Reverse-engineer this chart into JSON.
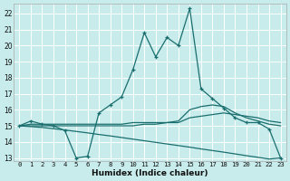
{
  "background_color": "#c8ecec",
  "grid_color": "#ffffff",
  "line_color": "#1a6e6e",
  "x_label": "Humidex (Indice chaleur)",
  "xlim": [
    -0.5,
    23.5
  ],
  "ylim": [
    12.8,
    22.6
  ],
  "yticks": [
    13,
    14,
    15,
    16,
    17,
    18,
    19,
    20,
    21,
    22
  ],
  "xticks": [
    0,
    1,
    2,
    3,
    4,
    5,
    6,
    7,
    8,
    9,
    10,
    11,
    12,
    13,
    14,
    15,
    16,
    17,
    18,
    19,
    20,
    21,
    22,
    23
  ],
  "line1_x": [
    0,
    1,
    2,
    3,
    4,
    5,
    6,
    7,
    8,
    9,
    10,
    11,
    12,
    13,
    14,
    15,
    16,
    17,
    18,
    19,
    20,
    21,
    22,
    23
  ],
  "line1_y": [
    15.0,
    15.3,
    15.1,
    15.0,
    14.7,
    13.0,
    13.1,
    15.8,
    16.3,
    16.8,
    18.5,
    20.8,
    19.3,
    20.5,
    20.0,
    22.3,
    17.3,
    16.7,
    16.1,
    15.5,
    15.2,
    15.2,
    14.8,
    13.0
  ],
  "line2_x": [
    0,
    1,
    2,
    3,
    4,
    5,
    6,
    7,
    8,
    9,
    10,
    11,
    12,
    13,
    14,
    15,
    16,
    17,
    18,
    19,
    20,
    21,
    22,
    23
  ],
  "line2_y": [
    15.0,
    15.1,
    15.1,
    15.1,
    15.1,
    15.1,
    15.1,
    15.1,
    15.1,
    15.1,
    15.2,
    15.2,
    15.2,
    15.2,
    15.2,
    15.5,
    15.6,
    15.7,
    15.8,
    15.7,
    15.6,
    15.5,
    15.3,
    15.2
  ],
  "line3_x": [
    0,
    1,
    2,
    3,
    4,
    5,
    6,
    7,
    8,
    9,
    10,
    11,
    12,
    13,
    14,
    15,
    16,
    17,
    18,
    19,
    20,
    21,
    22,
    23
  ],
  "line3_y": [
    15.0,
    15.0,
    15.0,
    15.0,
    15.0,
    15.0,
    15.0,
    15.0,
    15.0,
    15.0,
    15.0,
    15.1,
    15.1,
    15.2,
    15.3,
    16.0,
    16.2,
    16.3,
    16.2,
    15.8,
    15.5,
    15.3,
    15.1,
    15.0
  ],
  "line4_x": [
    0,
    1,
    2,
    3,
    4,
    5,
    6,
    7,
    8,
    9,
    10,
    11,
    12,
    13,
    14,
    15,
    16,
    17,
    18,
    19,
    20,
    21,
    22,
    23
  ],
  "line4_y": [
    15.0,
    14.95,
    14.9,
    14.82,
    14.74,
    14.65,
    14.56,
    14.46,
    14.37,
    14.27,
    14.17,
    14.07,
    13.97,
    13.87,
    13.77,
    13.67,
    13.56,
    13.46,
    13.36,
    13.25,
    13.14,
    13.04,
    12.93,
    13.0
  ]
}
